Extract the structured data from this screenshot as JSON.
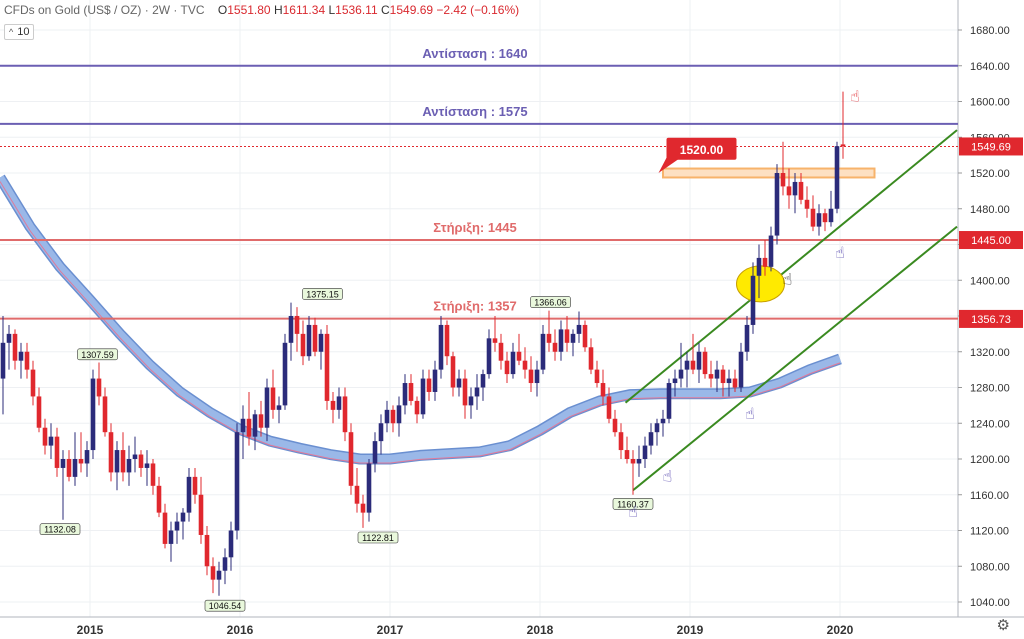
{
  "header": {
    "symbol": "CFDs on Gold (US$ / OZ)",
    "interval": "2W",
    "source": "TVC",
    "open_label": "O",
    "open": "1551.80",
    "high_label": "H",
    "high": "1611.34",
    "low_label": "L",
    "low": "1536.11",
    "close_label": "C",
    "close": "1549.69",
    "change": "−2.42 (−0.16%)"
  },
  "indicator": {
    "chevron": "^",
    "value": "10"
  },
  "icons": {
    "settings": "gear-icon",
    "collapse": "chevron-up-icon",
    "annotation_pointers": "hand-pointer-icon"
  },
  "colors": {
    "resistance": "#6b5fb3",
    "support": "#e06b6b",
    "current_price": "#e0282e",
    "channel": "#3a8a20",
    "moving_average": "#9ab8e8",
    "bull_candle": "#2b2b7a",
    "bear_candle": "#e0282e",
    "highlight_ellipse": "#ffea00",
    "zone": "#f7b36b"
  },
  "chart_data": {
    "type": "candlestick",
    "ylim": [
      1020,
      1700
    ],
    "y_ticks": [
      "1040.00",
      "1080.00",
      "1120.00",
      "1160.00",
      "1200.00",
      "1240.00",
      "1280.00",
      "1320.00",
      "1360.00",
      "1400.00",
      "1440.00",
      "1480.00",
      "1520.00",
      "1560.00",
      "1600.00",
      "1640.00",
      "1680.00"
    ],
    "x_ticks": [
      "2015",
      "2016",
      "2017",
      "2018",
      "2019",
      "2020"
    ],
    "horizontal_lines": [
      {
        "label": "Αντίσταση : 1640",
        "value": 1640,
        "kind": "resistance"
      },
      {
        "label": "Αντίσταση : 1575",
        "value": 1575,
        "kind": "resistance"
      },
      {
        "label": "Στήριξη: 1445",
        "value": 1445,
        "kind": "support"
      },
      {
        "label": "Στήριξη: 1357",
        "value": 1357,
        "kind": "support"
      }
    ],
    "price_badges": [
      "1549.69",
      "1445.00",
      "1356.73"
    ],
    "price_label_callout": {
      "text": "1520.00",
      "value": 1520
    },
    "annotations": [
      {
        "text": "1375.15",
        "value": 1375.15,
        "x": 2016.55
      },
      {
        "text": "1307.59",
        "value": 1307.59,
        "x": 2015.05
      },
      {
        "text": "1132.08",
        "value": 1132.08,
        "x": 2014.8
      },
      {
        "text": "1046.54",
        "value": 1046.54,
        "x": 2015.9
      },
      {
        "text": "1122.81",
        "value": 1122.81,
        "x": 2016.92
      },
      {
        "text": "1366.06",
        "value": 1366.06,
        "x": 2018.07
      },
      {
        "text": "1160.37",
        "value": 1160.37,
        "x": 2018.62
      }
    ],
    "channel_lines": [
      {
        "from": [
          2018.57,
          1263
        ],
        "to": [
          2020.78,
          1568
        ]
      },
      {
        "from": [
          2018.62,
          1165
        ],
        "to": [
          2020.78,
          1460
        ]
      }
    ],
    "moving_average": [
      [
        2014.4,
        1515
      ],
      [
        2014.6,
        1460
      ],
      [
        2014.8,
        1415
      ],
      [
        2015.0,
        1378
      ],
      [
        2015.2,
        1340
      ],
      [
        2015.4,
        1305
      ],
      [
        2015.6,
        1275
      ],
      [
        2015.8,
        1252
      ],
      [
        2016.0,
        1233
      ],
      [
        2016.2,
        1220
      ],
      [
        2016.4,
        1212
      ],
      [
        2016.6,
        1205
      ],
      [
        2016.8,
        1200
      ],
      [
        2017.0,
        1200
      ],
      [
        2017.2,
        1204
      ],
      [
        2017.4,
        1206
      ],
      [
        2017.6,
        1208
      ],
      [
        2017.8,
        1215
      ],
      [
        2018.0,
        1232
      ],
      [
        2018.2,
        1252
      ],
      [
        2018.4,
        1265
      ],
      [
        2018.6,
        1272
      ],
      [
        2018.8,
        1273
      ],
      [
        2019.0,
        1273
      ],
      [
        2019.2,
        1273
      ],
      [
        2019.4,
        1275
      ],
      [
        2019.6,
        1285
      ],
      [
        2019.8,
        1300
      ],
      [
        2020.0,
        1312
      ]
    ],
    "candles": [
      [
        2014.42,
        1290,
        1360,
        1250,
        1330
      ],
      [
        2014.46,
        1330,
        1350,
        1300,
        1340
      ],
      [
        2014.5,
        1340,
        1345,
        1300,
        1310
      ],
      [
        2014.54,
        1310,
        1330,
        1290,
        1320
      ],
      [
        2014.58,
        1320,
        1330,
        1290,
        1300
      ],
      [
        2014.62,
        1300,
        1310,
        1260,
        1270
      ],
      [
        2014.66,
        1270,
        1280,
        1230,
        1235
      ],
      [
        2014.7,
        1235,
        1245,
        1205,
        1215
      ],
      [
        2014.74,
        1215,
        1240,
        1200,
        1225
      ],
      [
        2014.78,
        1225,
        1235,
        1180,
        1190
      ],
      [
        2014.82,
        1190,
        1210,
        1132,
        1200
      ],
      [
        2014.86,
        1200,
        1210,
        1175,
        1180
      ],
      [
        2014.9,
        1180,
        1230,
        1170,
        1200
      ],
      [
        2014.94,
        1200,
        1230,
        1185,
        1195
      ],
      [
        2014.98,
        1195,
        1220,
        1180,
        1210
      ],
      [
        2015.02,
        1210,
        1300,
        1200,
        1290
      ],
      [
        2015.06,
        1290,
        1308,
        1260,
        1270
      ],
      [
        2015.1,
        1270,
        1280,
        1225,
        1230
      ],
      [
        2015.14,
        1230,
        1240,
        1175,
        1185
      ],
      [
        2015.18,
        1185,
        1220,
        1165,
        1210
      ],
      [
        2015.22,
        1210,
        1230,
        1175,
        1185
      ],
      [
        2015.26,
        1185,
        1215,
        1170,
        1200
      ],
      [
        2015.3,
        1200,
        1225,
        1185,
        1205
      ],
      [
        2015.34,
        1205,
        1210,
        1180,
        1190
      ],
      [
        2015.38,
        1190,
        1210,
        1170,
        1195
      ],
      [
        2015.42,
        1195,
        1200,
        1160,
        1170
      ],
      [
        2015.46,
        1170,
        1180,
        1135,
        1140
      ],
      [
        2015.5,
        1140,
        1150,
        1100,
        1105
      ],
      [
        2015.54,
        1105,
        1130,
        1085,
        1120
      ],
      [
        2015.58,
        1120,
        1140,
        1105,
        1130
      ],
      [
        2015.62,
        1130,
        1145,
        1110,
        1140
      ],
      [
        2015.66,
        1140,
        1190,
        1130,
        1180
      ],
      [
        2015.7,
        1180,
        1190,
        1150,
        1160
      ],
      [
        2015.74,
        1160,
        1180,
        1105,
        1115
      ],
      [
        2015.78,
        1115,
        1125,
        1070,
        1080
      ],
      [
        2015.82,
        1080,
        1090,
        1050,
        1065
      ],
      [
        2015.86,
        1065,
        1085,
        1047,
        1075
      ],
      [
        2015.9,
        1075,
        1100,
        1060,
        1090
      ],
      [
        2015.94,
        1090,
        1130,
        1075,
        1120
      ],
      [
        2015.98,
        1120,
        1240,
        1110,
        1230
      ],
      [
        2016.02,
        1230,
        1260,
        1200,
        1245
      ],
      [
        2016.06,
        1245,
        1275,
        1215,
        1225
      ],
      [
        2016.1,
        1225,
        1255,
        1210,
        1250
      ],
      [
        2016.14,
        1250,
        1265,
        1225,
        1235
      ],
      [
        2016.18,
        1235,
        1290,
        1220,
        1280
      ],
      [
        2016.22,
        1280,
        1300,
        1245,
        1255
      ],
      [
        2016.26,
        1255,
        1270,
        1240,
        1260
      ],
      [
        2016.3,
        1260,
        1340,
        1255,
        1330
      ],
      [
        2016.34,
        1330,
        1375,
        1310,
        1360
      ],
      [
        2016.38,
        1360,
        1370,
        1320,
        1340
      ],
      [
        2016.42,
        1340,
        1355,
        1305,
        1315
      ],
      [
        2016.46,
        1315,
        1360,
        1310,
        1350
      ],
      [
        2016.5,
        1350,
        1358,
        1315,
        1320
      ],
      [
        2016.54,
        1320,
        1345,
        1300,
        1340
      ],
      [
        2016.58,
        1340,
        1350,
        1255,
        1265
      ],
      [
        2016.62,
        1265,
        1275,
        1240,
        1255
      ],
      [
        2016.66,
        1255,
        1280,
        1245,
        1270
      ],
      [
        2016.7,
        1270,
        1280,
        1220,
        1230
      ],
      [
        2016.74,
        1230,
        1240,
        1160,
        1170
      ],
      [
        2016.78,
        1170,
        1190,
        1140,
        1150
      ],
      [
        2016.82,
        1150,
        1160,
        1123,
        1140
      ],
      [
        2016.86,
        1140,
        1200,
        1130,
        1195
      ],
      [
        2016.9,
        1195,
        1230,
        1185,
        1220
      ],
      [
        2016.94,
        1220,
        1250,
        1205,
        1240
      ],
      [
        2016.98,
        1240,
        1265,
        1230,
        1255
      ],
      [
        2017.02,
        1255,
        1260,
        1230,
        1240
      ],
      [
        2017.06,
        1240,
        1270,
        1225,
        1260
      ],
      [
        2017.1,
        1260,
        1295,
        1250,
        1285
      ],
      [
        2017.14,
        1285,
        1295,
        1260,
        1265
      ],
      [
        2017.18,
        1265,
        1270,
        1240,
        1250
      ],
      [
        2017.22,
        1250,
        1300,
        1245,
        1290
      ],
      [
        2017.26,
        1290,
        1300,
        1265,
        1275
      ],
      [
        2017.3,
        1275,
        1310,
        1265,
        1300
      ],
      [
        2017.34,
        1300,
        1360,
        1290,
        1350
      ],
      [
        2017.38,
        1350,
        1355,
        1305,
        1315
      ],
      [
        2017.42,
        1315,
        1320,
        1270,
        1280
      ],
      [
        2017.46,
        1280,
        1300,
        1270,
        1290
      ],
      [
        2017.5,
        1290,
        1300,
        1245,
        1260
      ],
      [
        2017.54,
        1260,
        1280,
        1245,
        1270
      ],
      [
        2017.58,
        1270,
        1295,
        1255,
        1280
      ],
      [
        2017.62,
        1280,
        1300,
        1265,
        1295
      ],
      [
        2017.66,
        1295,
        1345,
        1290,
        1335
      ],
      [
        2017.7,
        1335,
        1360,
        1320,
        1330
      ],
      [
        2017.74,
        1330,
        1340,
        1300,
        1310
      ],
      [
        2017.78,
        1310,
        1320,
        1285,
        1295
      ],
      [
        2017.82,
        1295,
        1330,
        1290,
        1320
      ],
      [
        2017.86,
        1320,
        1340,
        1305,
        1310
      ],
      [
        2017.9,
        1310,
        1325,
        1290,
        1300
      ],
      [
        2017.94,
        1300,
        1315,
        1275,
        1285
      ],
      [
        2017.98,
        1285,
        1310,
        1270,
        1300
      ],
      [
        2018.02,
        1300,
        1350,
        1295,
        1340
      ],
      [
        2018.06,
        1340,
        1366,
        1320,
        1330
      ],
      [
        2018.1,
        1330,
        1345,
        1310,
        1320
      ],
      [
        2018.14,
        1320,
        1355,
        1310,
        1345
      ],
      [
        2018.18,
        1345,
        1360,
        1320,
        1330
      ],
      [
        2018.22,
        1330,
        1345,
        1315,
        1340
      ],
      [
        2018.26,
        1340,
        1365,
        1330,
        1350
      ],
      [
        2018.3,
        1350,
        1355,
        1320,
        1325
      ],
      [
        2018.34,
        1325,
        1335,
        1295,
        1300
      ],
      [
        2018.38,
        1300,
        1310,
        1280,
        1285
      ],
      [
        2018.42,
        1285,
        1300,
        1260,
        1270
      ],
      [
        2018.46,
        1270,
        1280,
        1240,
        1245
      ],
      [
        2018.5,
        1245,
        1255,
        1225,
        1230
      ],
      [
        2018.54,
        1230,
        1240,
        1200,
        1210
      ],
      [
        2018.58,
        1210,
        1225,
        1195,
        1200
      ],
      [
        2018.62,
        1200,
        1210,
        1160,
        1195
      ],
      [
        2018.66,
        1195,
        1215,
        1180,
        1200
      ],
      [
        2018.7,
        1200,
        1225,
        1190,
        1215
      ],
      [
        2018.74,
        1215,
        1240,
        1205,
        1230
      ],
      [
        2018.78,
        1230,
        1245,
        1215,
        1240
      ],
      [
        2018.82,
        1240,
        1255,
        1225,
        1245
      ],
      [
        2018.86,
        1245,
        1290,
        1240,
        1285
      ],
      [
        2018.9,
        1285,
        1300,
        1270,
        1290
      ],
      [
        2018.94,
        1290,
        1330,
        1280,
        1300
      ],
      [
        2018.98,
        1300,
        1320,
        1280,
        1310
      ],
      [
        2019.02,
        1310,
        1340,
        1295,
        1300
      ],
      [
        2019.06,
        1300,
        1330,
        1285,
        1320
      ],
      [
        2019.1,
        1320,
        1325,
        1290,
        1295
      ],
      [
        2019.14,
        1295,
        1310,
        1280,
        1290
      ],
      [
        2019.18,
        1290,
        1310,
        1275,
        1300
      ],
      [
        2019.22,
        1300,
        1305,
        1270,
        1285
      ],
      [
        2019.26,
        1285,
        1300,
        1270,
        1290
      ],
      [
        2019.3,
        1290,
        1300,
        1275,
        1280
      ],
      [
        2019.34,
        1280,
        1330,
        1275,
        1320
      ],
      [
        2019.38,
        1320,
        1360,
        1310,
        1350
      ],
      [
        2019.42,
        1350,
        1420,
        1340,
        1405
      ],
      [
        2019.46,
        1405,
        1440,
        1380,
        1425
      ],
      [
        2019.5,
        1425,
        1445,
        1405,
        1415
      ],
      [
        2019.54,
        1415,
        1460,
        1410,
        1450
      ],
      [
        2019.58,
        1450,
        1530,
        1440,
        1520
      ],
      [
        2019.62,
        1520,
        1555,
        1495,
        1505
      ],
      [
        2019.66,
        1505,
        1525,
        1480,
        1495
      ],
      [
        2019.7,
        1495,
        1520,
        1475,
        1510
      ],
      [
        2019.74,
        1510,
        1520,
        1485,
        1490
      ],
      [
        2019.78,
        1490,
        1505,
        1470,
        1480
      ],
      [
        2019.82,
        1480,
        1495,
        1455,
        1460
      ],
      [
        2019.86,
        1460,
        1485,
        1450,
        1475
      ],
      [
        2019.9,
        1475,
        1480,
        1455,
        1465
      ],
      [
        2019.94,
        1465,
        1500,
        1460,
        1480
      ],
      [
        2019.98,
        1480,
        1555,
        1475,
        1550
      ],
      [
        2020.02,
        1552,
        1611,
        1536,
        1550
      ]
    ]
  }
}
